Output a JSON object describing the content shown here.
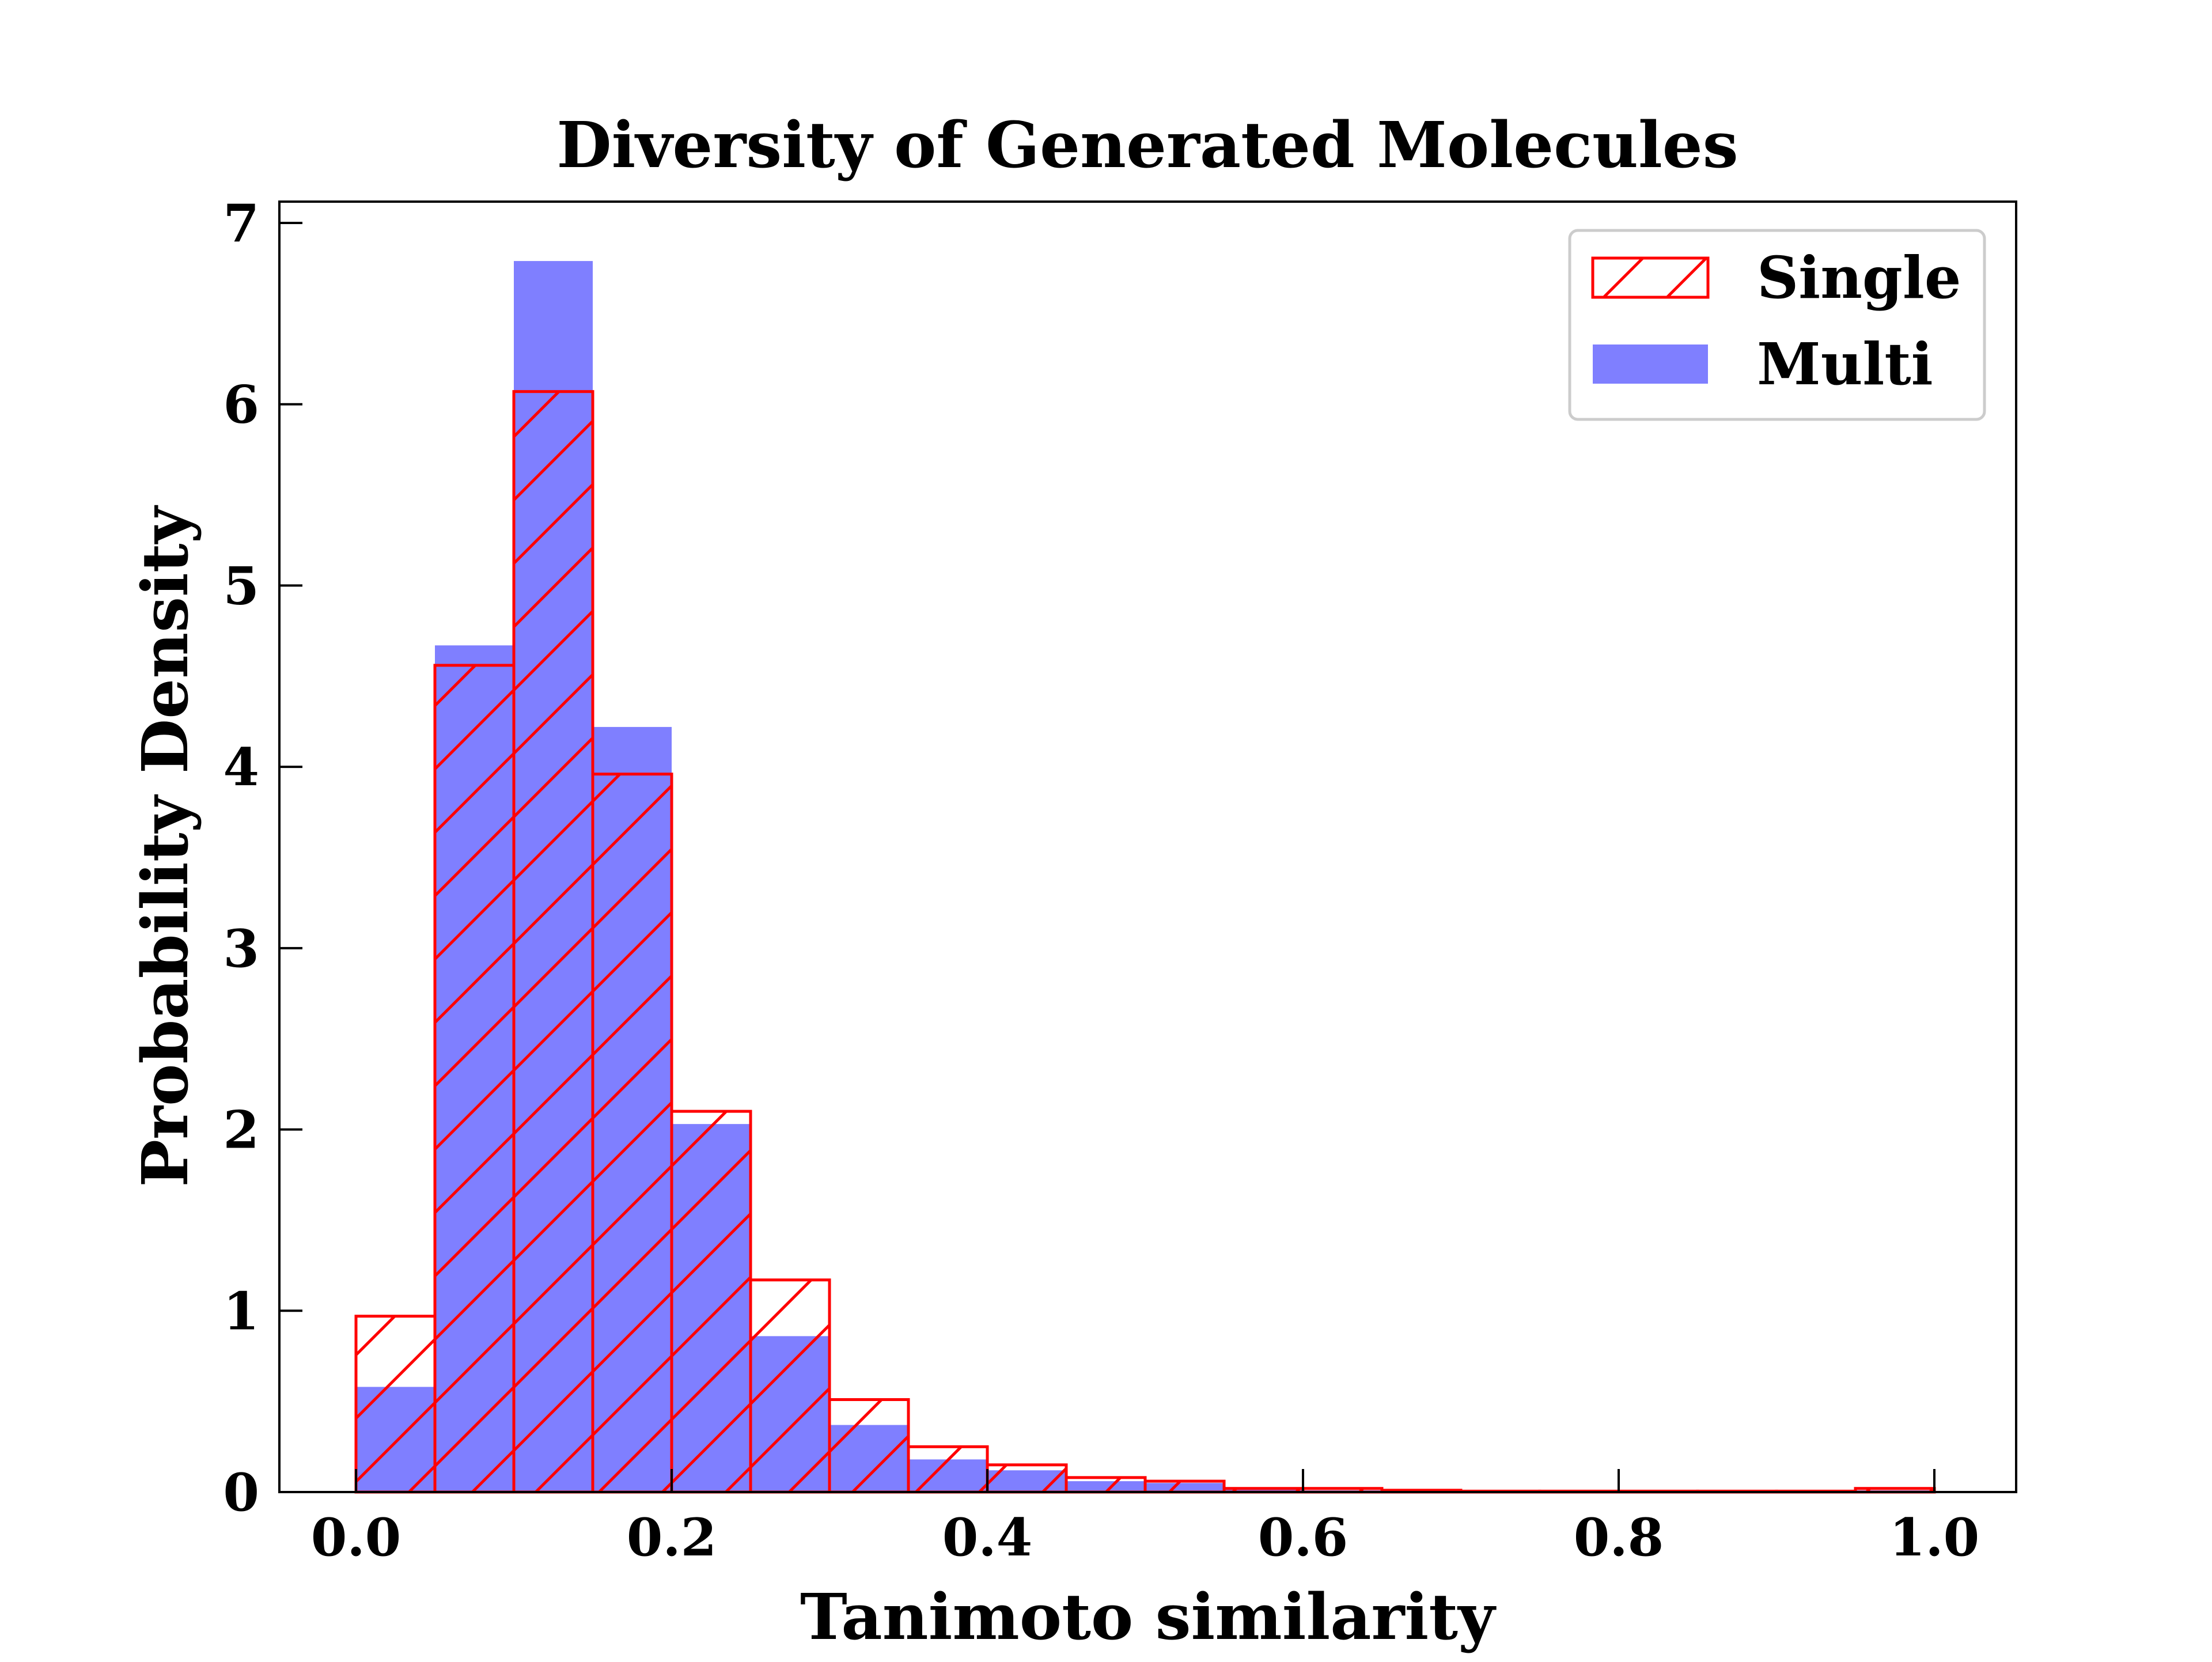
{
  "chart_data": {
    "type": "bar",
    "title": "Diversity of Generated Molecules",
    "xlabel": "Tanimoto similarity",
    "ylabel": "Probability Density",
    "xlim": [
      -0.05,
      1.05
    ],
    "ylim": [
      0,
      7.1
    ],
    "xticks": [
      0.0,
      0.2,
      0.4,
      0.6,
      0.8,
      1.0
    ],
    "xtick_labels": [
      "0.0",
      "0.2",
      "0.4",
      "0.6",
      "0.8",
      "1.0"
    ],
    "yticks": [
      0,
      1,
      2,
      3,
      4,
      5,
      6,
      7
    ],
    "ytick_labels": [
      "0",
      "1",
      "2",
      "3",
      "4",
      "5",
      "6",
      "7"
    ],
    "bin_width": 0.05,
    "bin_edges": [
      0.0,
      0.05,
      0.1,
      0.15,
      0.2,
      0.25,
      0.3,
      0.35,
      0.4,
      0.45,
      0.5,
      0.55,
      0.6,
      0.65,
      0.7,
      0.75,
      0.8,
      0.85,
      0.9,
      0.95,
      1.0
    ],
    "grid": false,
    "legend_position": "top-right",
    "series": [
      {
        "name": "Single",
        "style": "hatched-outline",
        "color": "#ff0000",
        "values": [
          0.97,
          4.56,
          6.07,
          3.96,
          2.1,
          1.17,
          0.51,
          0.25,
          0.15,
          0.08,
          0.06,
          0.02,
          0.02,
          0.01,
          0.005,
          0.005,
          0.005,
          0.005,
          0.005,
          0.02
        ]
      },
      {
        "name": "Multi",
        "style": "filled",
        "color": "#0000ff",
        "opacity": 0.5,
        "values": [
          0.58,
          4.67,
          6.79,
          4.22,
          2.03,
          0.86,
          0.37,
          0.18,
          0.12,
          0.06,
          0.05,
          0.02,
          0.01,
          0.005,
          0.005,
          0.005,
          0.005,
          0.005,
          0.005,
          0.01
        ]
      }
    ]
  }
}
